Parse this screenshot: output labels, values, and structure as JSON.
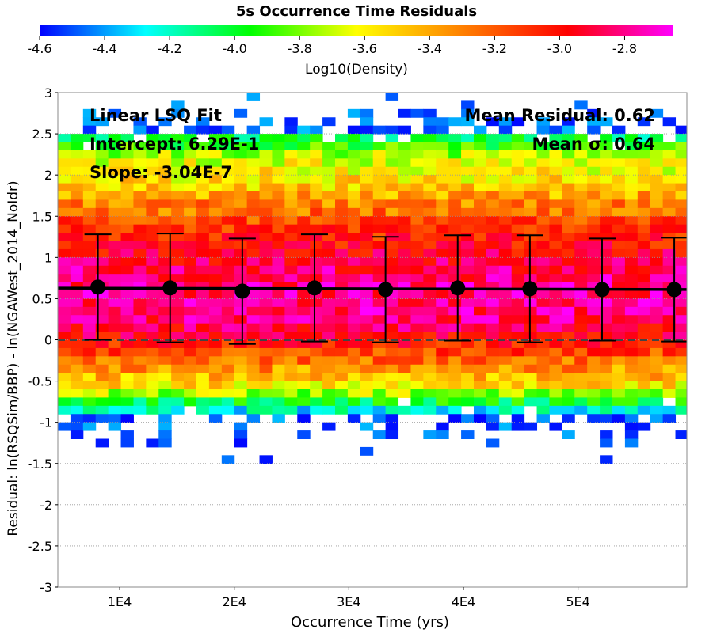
{
  "chart_data": {
    "type": "heatmap",
    "title": "5s Occurrence Time Residuals",
    "xlabel": "Occurrence Time (yrs)",
    "ylabel": "Residual: ln(RSQSim/BBP) - ln(NGAWest_2014_NoIdr)",
    "xlim": [
      4600,
      59500
    ],
    "ylim": [
      -3,
      3
    ],
    "x_ticks": [
      {
        "value": 10000,
        "label": "1E4"
      },
      {
        "value": 20000,
        "label": "2E4"
      },
      {
        "value": 30000,
        "label": "3E4"
      },
      {
        "value": 40000,
        "label": "4E4"
      },
      {
        "value": 50000,
        "label": "5E4"
      }
    ],
    "y_ticks": [
      {
        "value": 3,
        "label": "3"
      },
      {
        "value": 2.5,
        "label": "2.5"
      },
      {
        "value": 2,
        "label": "2"
      },
      {
        "value": 1.5,
        "label": "1.5"
      },
      {
        "value": 1,
        "label": "1"
      },
      {
        "value": 0.5,
        "label": "0.5"
      },
      {
        "value": 0,
        "label": "0"
      },
      {
        "value": -0.5,
        "label": "-0.5"
      },
      {
        "value": -1,
        "label": "-1"
      },
      {
        "value": -1.5,
        "label": "-1.5"
      },
      {
        "value": -2,
        "label": "-2"
      },
      {
        "value": -2.5,
        "label": "-2.5"
      },
      {
        "value": -3,
        "label": "-3"
      }
    ],
    "colorbar": {
      "label": "Log10(Density)",
      "range": [
        -4.6,
        -2.65
      ],
      "ticks": [
        {
          "value": -4.6,
          "label": "-4.6"
        },
        {
          "value": -4.4,
          "label": "-4.4"
        },
        {
          "value": -4.2,
          "label": "-4.2"
        },
        {
          "value": -4.0,
          "label": "-4.0"
        },
        {
          "value": -3.8,
          "label": "-3.8"
        },
        {
          "value": -3.6,
          "label": "-3.6"
        },
        {
          "value": -3.4,
          "label": "-3.4"
        },
        {
          "value": -3.2,
          "label": "-3.2"
        },
        {
          "value": -3.0,
          "label": "-3.0"
        },
        {
          "value": -2.8,
          "label": "-2.8"
        }
      ],
      "colors": [
        "#0000ff",
        "#00ffff",
        "#00ff00",
        "#ffff00",
        "#ff8000",
        "#ff0000",
        "#ff00ff"
      ]
    },
    "heatmap_profile": {
      "x_bin_width": 1100,
      "y_bin_width": 0.1,
      "y_values": [
        2.95,
        2.85,
        2.75,
        2.65,
        2.55,
        2.45,
        2.35,
        2.25,
        2.15,
        2.05,
        1.95,
        1.85,
        1.75,
        1.65,
        1.55,
        1.45,
        1.35,
        1.25,
        1.15,
        1.05,
        0.95,
        0.85,
        0.75,
        0.65,
        0.55,
        0.45,
        0.35,
        0.25,
        0.15,
        0.05,
        -0.05,
        -0.15,
        -0.25,
        -0.35,
        -0.45,
        -0.55,
        -0.65,
        -0.75,
        -0.85,
        -0.95,
        -1.05,
        -1.15,
        -1.25,
        -1.35,
        -1.45
      ],
      "log10_density": [
        -4.6,
        -4.6,
        -4.55,
        -4.4,
        -4.2,
        -4.05,
        -3.9,
        -3.75,
        -3.65,
        -3.6,
        -3.55,
        -3.5,
        -3.4,
        -3.3,
        -3.25,
        -3.15,
        -3.1,
        -3.05,
        -3.0,
        -2.95,
        -2.9,
        -2.85,
        -2.82,
        -2.8,
        -2.8,
        -2.8,
        -2.82,
        -2.85,
        -2.9,
        -2.95,
        -3.05,
        -3.15,
        -3.25,
        -3.35,
        -3.45,
        -3.55,
        -3.75,
        -4.0,
        -4.25,
        -4.5,
        -4.6,
        -4.6,
        -4.6,
        -4.6,
        -4.6
      ],
      "occupancy": [
        0.08,
        0.12,
        0.22,
        0.38,
        0.58,
        0.82,
        0.97,
        1,
        1,
        1,
        1,
        1,
        1,
        1,
        1,
        1,
        1,
        1,
        1,
        1,
        1,
        1,
        1,
        1,
        1,
        1,
        1,
        1,
        1,
        1,
        1,
        1,
        1,
        1,
        1,
        1,
        1,
        0.97,
        0.93,
        0.55,
        0.25,
        0.16,
        0.1,
        0.07,
        0.05
      ]
    },
    "series": [
      {
        "type": "errorbar",
        "x": [
          8100,
          14400,
          20700,
          27000,
          33200,
          39500,
          45800,
          52100,
          58400
        ],
        "y": [
          0.64,
          0.63,
          0.59,
          0.63,
          0.61,
          0.63,
          0.62,
          0.61,
          0.61
        ],
        "yerr": [
          0.64,
          0.66,
          0.64,
          0.65,
          0.64,
          0.64,
          0.65,
          0.62,
          0.63
        ]
      },
      {
        "type": "fit-line",
        "intercept": 0.629,
        "slope": -3.04e-07
      },
      {
        "type": "zero-line",
        "y": 0,
        "style": "dashed"
      }
    ],
    "annotations": {
      "fit_title": "Linear LSQ Fit",
      "intercept": "Intercept: 6.29E-1",
      "slope": "Slope: -3.04E-7",
      "mean_residual": "Mean Residual: 0.62",
      "mean_sigma": "Mean σ: 0.64"
    }
  }
}
